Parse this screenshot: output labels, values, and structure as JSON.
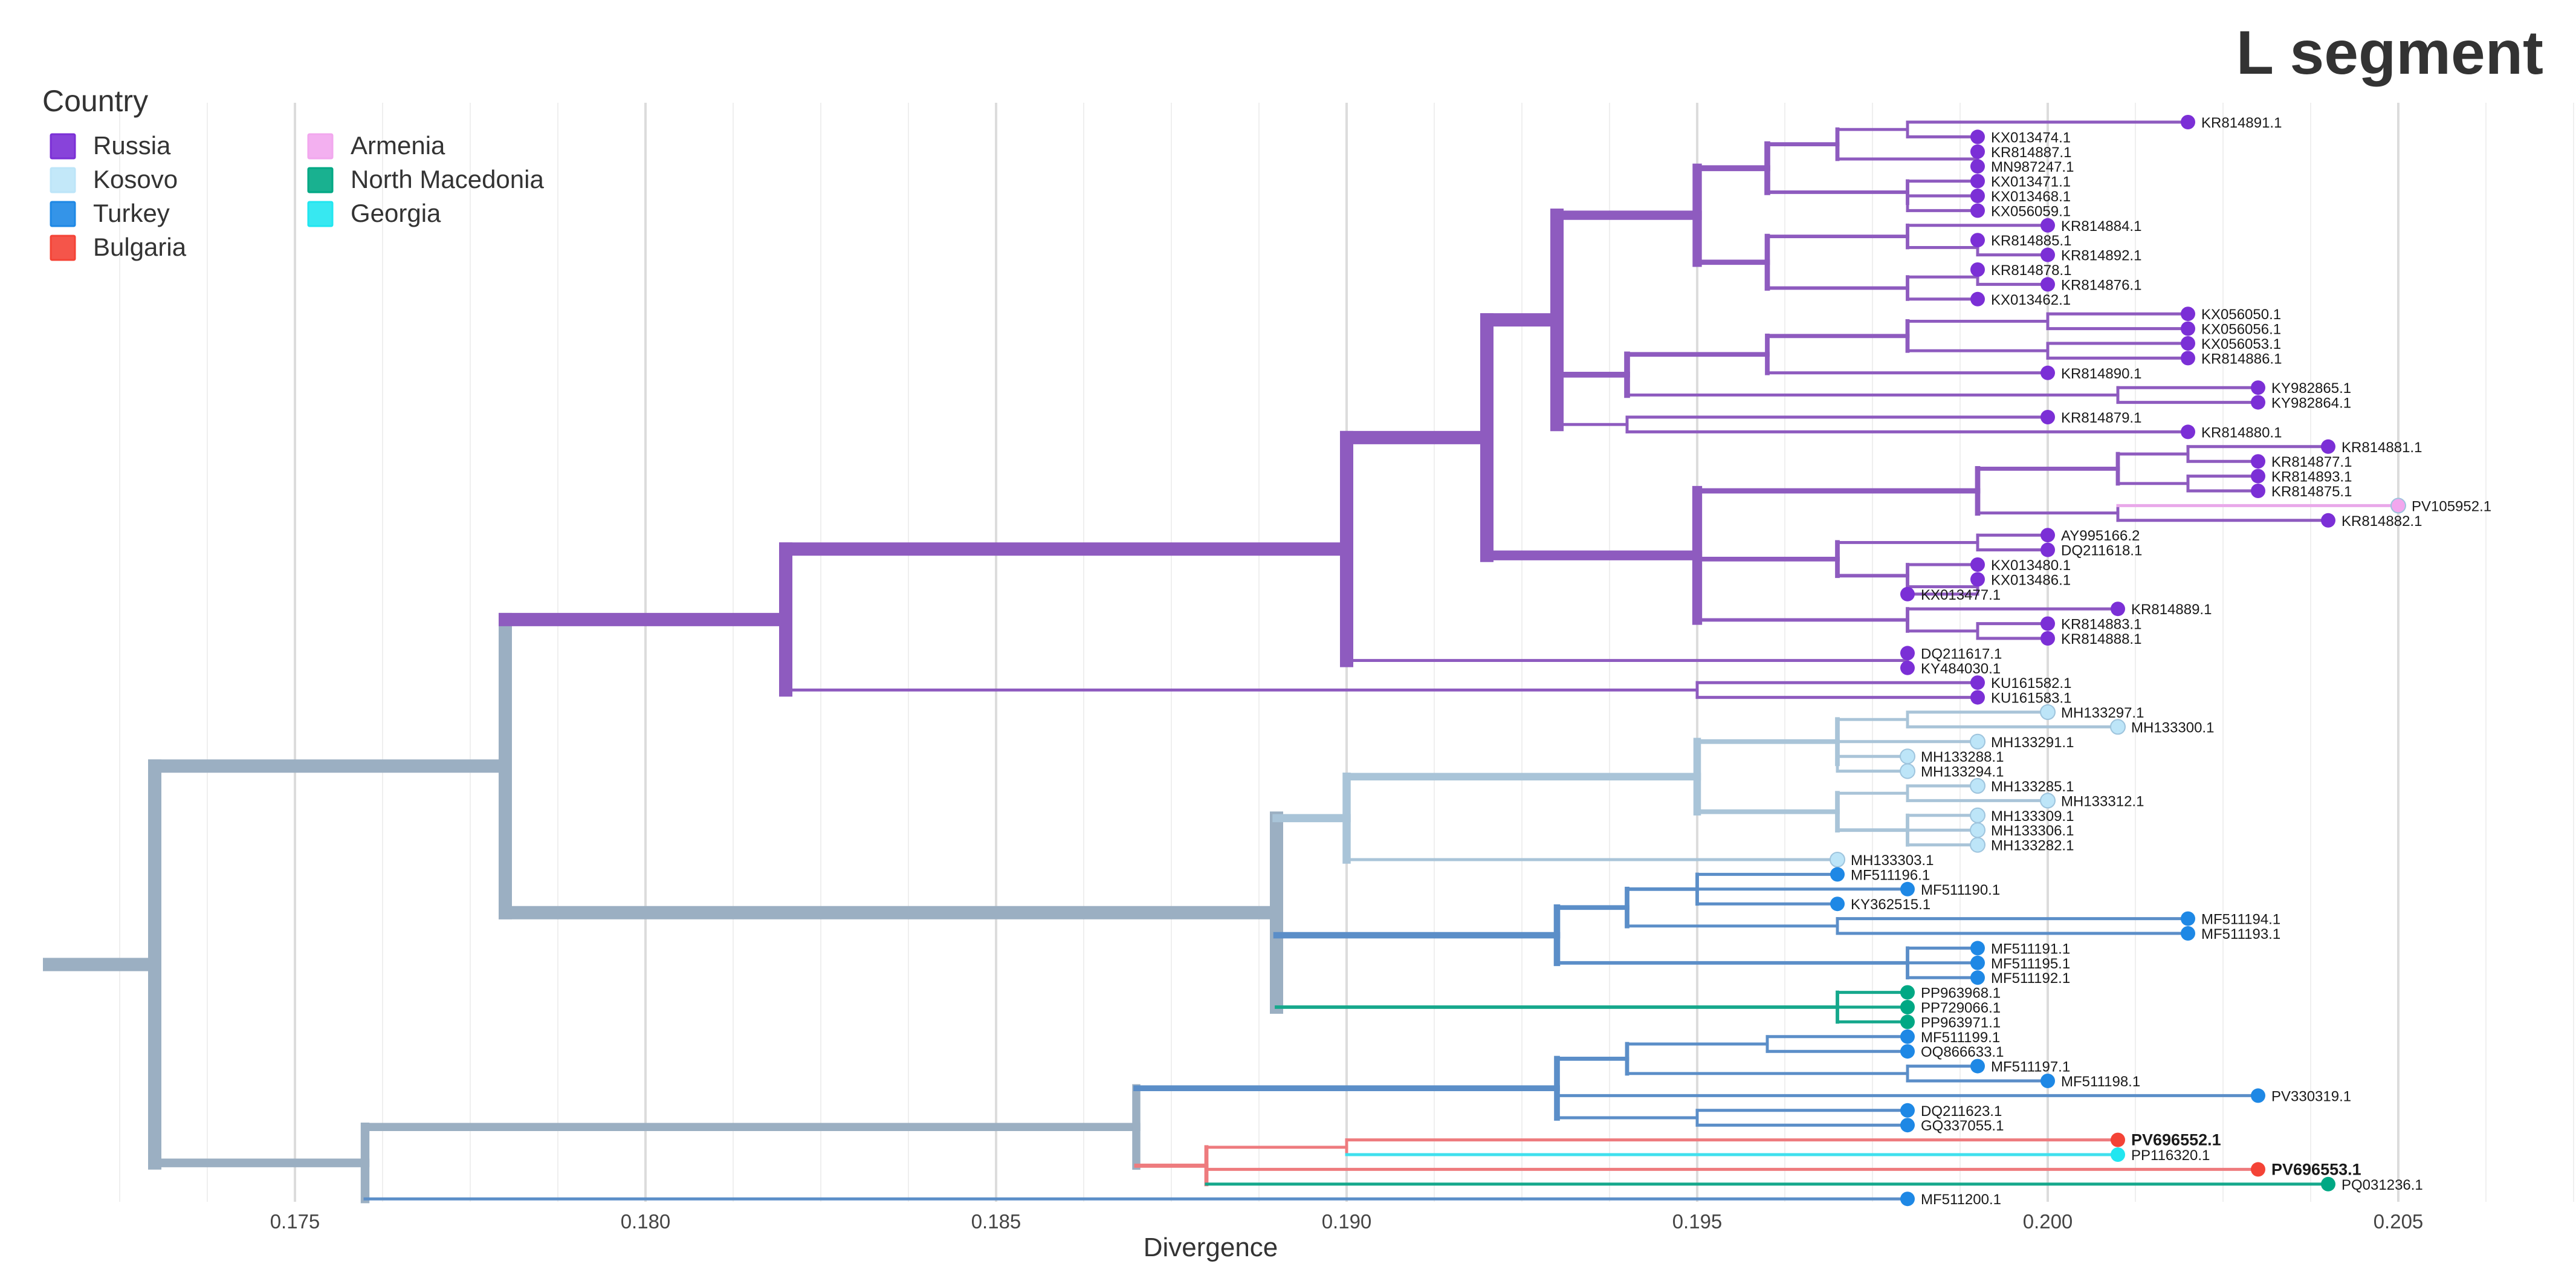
{
  "chart_data": {
    "type": "phylogenetic-tree",
    "title": "L segment",
    "xlabel": "Divergence",
    "xlim": [
      0.1715,
      0.2065
    ],
    "x_ticks": [
      0.175,
      0.18,
      0.185,
      0.19,
      0.195,
      0.2,
      0.205
    ],
    "x_tick_labels": [
      "0.175",
      "0.180",
      "0.185",
      "0.190",
      "0.195",
      "0.200",
      "0.205"
    ],
    "legend": {
      "title": "Country",
      "entries": [
        {
          "name": "Russia",
          "color": "#7B2FD6"
        },
        {
          "name": "Kosovo",
          "color": "#BDE5F8"
        },
        {
          "name": "Turkey",
          "color": "#1E88E5"
        },
        {
          "name": "Bulgaria",
          "color": "#F44336"
        },
        {
          "name": "Armenia",
          "color": "#F2A7EE"
        },
        {
          "name": "North Macedonia",
          "color": "#00A884"
        },
        {
          "name": "Georgia",
          "color": "#21E6F0"
        }
      ]
    },
    "tips": [
      {
        "label": "KR814891.1",
        "divergence": 0.202,
        "country": "Russia"
      },
      {
        "label": "KX013474.1",
        "divergence": 0.199,
        "country": "Russia"
      },
      {
        "label": "KR814887.1",
        "divergence": 0.199,
        "country": "Russia"
      },
      {
        "label": "MN987247.1",
        "divergence": 0.199,
        "country": "Russia"
      },
      {
        "label": "KX013471.1",
        "divergence": 0.199,
        "country": "Russia"
      },
      {
        "label": "KX013468.1",
        "divergence": 0.199,
        "country": "Russia"
      },
      {
        "label": "KX056059.1",
        "divergence": 0.199,
        "country": "Russia"
      },
      {
        "label": "KR814884.1",
        "divergence": 0.2,
        "country": "Russia"
      },
      {
        "label": "KR814885.1",
        "divergence": 0.199,
        "country": "Russia"
      },
      {
        "label": "KR814892.1",
        "divergence": 0.2,
        "country": "Russia"
      },
      {
        "label": "KR814878.1",
        "divergence": 0.199,
        "country": "Russia"
      },
      {
        "label": "KR814876.1",
        "divergence": 0.2,
        "country": "Russia"
      },
      {
        "label": "KX013462.1",
        "divergence": 0.199,
        "country": "Russia"
      },
      {
        "label": "KX056050.1",
        "divergence": 0.202,
        "country": "Russia"
      },
      {
        "label": "KX056056.1",
        "divergence": 0.202,
        "country": "Russia"
      },
      {
        "label": "KX056053.1",
        "divergence": 0.202,
        "country": "Russia"
      },
      {
        "label": "KR814886.1",
        "divergence": 0.202,
        "country": "Russia"
      },
      {
        "label": "KR814890.1",
        "divergence": 0.2,
        "country": "Russia"
      },
      {
        "label": "KY982865.1",
        "divergence": 0.203,
        "country": "Russia"
      },
      {
        "label": "KY982864.1",
        "divergence": 0.203,
        "country": "Russia"
      },
      {
        "label": "KR814879.1",
        "divergence": 0.2,
        "country": "Russia"
      },
      {
        "label": "KR814880.1",
        "divergence": 0.202,
        "country": "Russia"
      },
      {
        "label": "KR814881.1",
        "divergence": 0.204,
        "country": "Russia"
      },
      {
        "label": "KR814877.1",
        "divergence": 0.203,
        "country": "Russia"
      },
      {
        "label": "KR814893.1",
        "divergence": 0.203,
        "country": "Russia"
      },
      {
        "label": "KR814875.1",
        "divergence": 0.203,
        "country": "Russia"
      },
      {
        "label": "PV105952.1",
        "divergence": 0.205,
        "country": "Armenia"
      },
      {
        "label": "KR814882.1",
        "divergence": 0.204,
        "country": "Russia"
      },
      {
        "label": "AY995166.2",
        "divergence": 0.2,
        "country": "Russia"
      },
      {
        "label": "DQ211618.1",
        "divergence": 0.2,
        "country": "Russia"
      },
      {
        "label": "KX013480.1",
        "divergence": 0.199,
        "country": "Russia"
      },
      {
        "label": "KX013486.1",
        "divergence": 0.199,
        "country": "Russia"
      },
      {
        "label": "KX013477.1",
        "divergence": 0.198,
        "country": "Russia"
      },
      {
        "label": "KR814889.1",
        "divergence": 0.201,
        "country": "Russia"
      },
      {
        "label": "KR814883.1",
        "divergence": 0.2,
        "country": "Russia"
      },
      {
        "label": "KR814888.1",
        "divergence": 0.2,
        "country": "Russia"
      },
      {
        "label": "DQ211617.1",
        "divergence": 0.198,
        "country": "Russia"
      },
      {
        "label": "KY484030.1",
        "divergence": 0.198,
        "country": "Russia"
      },
      {
        "label": "KU161582.1",
        "divergence": 0.199,
        "country": "Russia"
      },
      {
        "label": "KU161583.1",
        "divergence": 0.199,
        "country": "Russia"
      },
      {
        "label": "MH133297.1",
        "divergence": 0.2,
        "country": "Kosovo"
      },
      {
        "label": "MH133300.1",
        "divergence": 0.201,
        "country": "Kosovo"
      },
      {
        "label": "MH133291.1",
        "divergence": 0.199,
        "country": "Kosovo"
      },
      {
        "label": "MH133288.1",
        "divergence": 0.198,
        "country": "Kosovo"
      },
      {
        "label": "MH133294.1",
        "divergence": 0.198,
        "country": "Kosovo"
      },
      {
        "label": "MH133285.1",
        "divergence": 0.199,
        "country": "Kosovo"
      },
      {
        "label": "MH133312.1",
        "divergence": 0.2,
        "country": "Kosovo"
      },
      {
        "label": "MH133309.1",
        "divergence": 0.199,
        "country": "Kosovo"
      },
      {
        "label": "MH133306.1",
        "divergence": 0.199,
        "country": "Kosovo"
      },
      {
        "label": "MH133282.1",
        "divergence": 0.199,
        "country": "Kosovo"
      },
      {
        "label": "MH133303.1",
        "divergence": 0.197,
        "country": "Kosovo"
      },
      {
        "label": "MF511196.1",
        "divergence": 0.197,
        "country": "Turkey"
      },
      {
        "label": "MF511190.1",
        "divergence": 0.198,
        "country": "Turkey"
      },
      {
        "label": "KY362515.1",
        "divergence": 0.197,
        "country": "Turkey"
      },
      {
        "label": "MF511194.1",
        "divergence": 0.202,
        "country": "Turkey"
      },
      {
        "label": "MF511193.1",
        "divergence": 0.202,
        "country": "Turkey"
      },
      {
        "label": "MF511191.1",
        "divergence": 0.199,
        "country": "Turkey"
      },
      {
        "label": "MF511195.1",
        "divergence": 0.199,
        "country": "Turkey"
      },
      {
        "label": "MF511192.1",
        "divergence": 0.199,
        "country": "Turkey"
      },
      {
        "label": "PP963968.1",
        "divergence": 0.198,
        "country": "North Macedonia"
      },
      {
        "label": "PP729066.1",
        "divergence": 0.198,
        "country": "North Macedonia"
      },
      {
        "label": "PP963971.1",
        "divergence": 0.198,
        "country": "North Macedonia"
      },
      {
        "label": "MF511199.1",
        "divergence": 0.198,
        "country": "Turkey"
      },
      {
        "label": "OQ866633.1",
        "divergence": 0.198,
        "country": "Turkey"
      },
      {
        "label": "MF511197.1",
        "divergence": 0.199,
        "country": "Turkey"
      },
      {
        "label": "MF511198.1",
        "divergence": 0.2,
        "country": "Turkey"
      },
      {
        "label": "PV330319.1",
        "divergence": 0.203,
        "country": "Turkey"
      },
      {
        "label": "DQ211623.1",
        "divergence": 0.198,
        "country": "Turkey"
      },
      {
        "label": "GQ337055.1",
        "divergence": 0.198,
        "country": "Turkey"
      },
      {
        "label": "PV696552.1",
        "divergence": 0.201,
        "country": "Bulgaria",
        "bold": true
      },
      {
        "label": "PP116320.1",
        "divergence": 0.201,
        "country": "Georgia"
      },
      {
        "label": "PV696553.1",
        "divergence": 0.203,
        "country": "Bulgaria",
        "bold": true
      },
      {
        "label": "PQ031236.1",
        "divergence": 0.204,
        "country": "North Macedonia"
      },
      {
        "label": "MF511200.1",
        "divergence": 0.198,
        "country": "Turkey"
      }
    ]
  }
}
